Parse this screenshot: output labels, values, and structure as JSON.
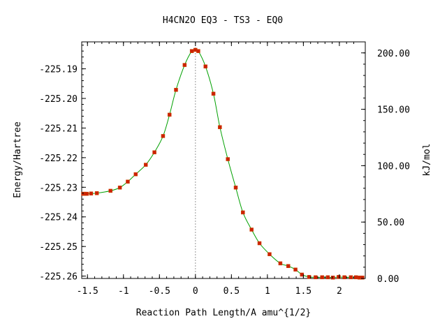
{
  "chart_data": {
    "type": "line",
    "title": "H4CN2O   EQ3 - TS3 - EQ0",
    "xlabel": "Reaction Path Length/A amu^{1/2}",
    "ylabel": "Energy/Hartree",
    "y2label": "kJ/mol",
    "xlim": [
      -1.58,
      2.36
    ],
    "ylim": [
      -225.2608,
      -225.1809
    ],
    "y2lim": [
      0.0,
      209.76
    ],
    "xticks": [
      -1.5,
      -1,
      -0.5,
      0,
      0.5,
      1,
      1.5,
      2
    ],
    "xtick_labels": [
      "-1.5",
      "-1",
      "-0.5",
      "0",
      "0.5",
      "1",
      "1.5",
      "2"
    ],
    "yticks": [
      -225.19,
      -225.2,
      -225.21,
      -225.22,
      -225.23,
      -225.24,
      -225.25,
      -225.26
    ],
    "ytick_labels": [
      "-225.19",
      "-225.20",
      "-225.21",
      "-225.22",
      "-225.23",
      "-225.24",
      "-225.25",
      "-225.26"
    ],
    "y2ticks": [
      0,
      50,
      100,
      150,
      200
    ],
    "y2tick_labels": [
      "0.00",
      "50.00",
      "100.00",
      "150.00",
      "200.00"
    ],
    "ts_line_x": 0,
    "grid": false,
    "series": [
      {
        "color": "#00a000",
        "marker_color": "#cc2200",
        "x": [
          -1.56,
          -1.54,
          -1.51,
          -1.45,
          -1.37,
          -1.18,
          -1.05,
          -0.94,
          -0.83,
          -0.69,
          -0.57,
          -0.45,
          -0.36,
          -0.27,
          -0.15,
          -0.05,
          0.0,
          0.04,
          0.14,
          0.25,
          0.34,
          0.45,
          0.56,
          0.66,
          0.78,
          0.89,
          1.03,
          1.18,
          1.29,
          1.39,
          1.48,
          1.58,
          1.67,
          1.76,
          1.84,
          1.91,
          1.99,
          2.07,
          2.16,
          2.23,
          2.28,
          2.32
        ],
        "y": [
          -225.2322,
          -225.2322,
          -225.2322,
          -225.2321,
          -225.232,
          -225.2312,
          -225.2301,
          -225.2281,
          -225.2256,
          -225.2224,
          -225.2182,
          -225.2127,
          -225.2055,
          -225.1971,
          -225.1887,
          -225.184,
          -225.1836,
          -225.184,
          -225.1892,
          -225.1984,
          -225.2097,
          -225.2205,
          -225.2301,
          -225.2385,
          -225.2443,
          -225.2489,
          -225.2526,
          -225.2557,
          -225.2566,
          -225.2578,
          -225.2595,
          -225.2603,
          -225.2604,
          -225.2604,
          -225.2604,
          -225.2605,
          -225.2603,
          -225.2604,
          -225.2604,
          -225.2604,
          -225.2605,
          -225.2605
        ]
      }
    ]
  }
}
